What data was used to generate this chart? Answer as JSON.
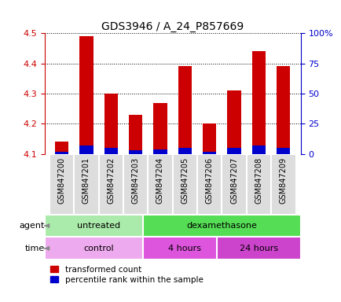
{
  "title": "GDS3946 / A_24_P857669",
  "samples": [
    "GSM847200",
    "GSM847201",
    "GSM847202",
    "GSM847203",
    "GSM847204",
    "GSM847205",
    "GSM847206",
    "GSM847207",
    "GSM847208",
    "GSM847209"
  ],
  "transformed_count": [
    4.14,
    4.49,
    4.3,
    4.23,
    4.27,
    4.39,
    4.2,
    4.31,
    4.44,
    4.39
  ],
  "percentile_rank": [
    2,
    7,
    5,
    3,
    4,
    5,
    2,
    5,
    7,
    5
  ],
  "bar_bottom": 4.1,
  "ylim": [
    4.1,
    4.5
  ],
  "y2lim": [
    0,
    100
  ],
  "y2ticks": [
    0,
    25,
    50,
    75,
    100
  ],
  "y2ticklabels": [
    "0",
    "25",
    "50",
    "75",
    "100%"
  ],
  "yticks": [
    4.1,
    4.2,
    4.3,
    4.4,
    4.5
  ],
  "bar_color_red": "#cc0000",
  "bar_color_blue": "#0000cc",
  "background_color": "#ffffff",
  "title_fontsize": 10,
  "agent_groups": [
    {
      "label": "untreated",
      "start": 0,
      "end": 4,
      "color": "#aaeaaa"
    },
    {
      "label": "dexamethasone",
      "start": 4,
      "end": 10,
      "color": "#55dd55"
    }
  ],
  "time_groups": [
    {
      "label": "control",
      "start": 0,
      "end": 4,
      "color": "#eeaaee"
    },
    {
      "label": "4 hours",
      "start": 4,
      "end": 7,
      "color": "#dd55dd"
    },
    {
      "label": "24 hours",
      "start": 7,
      "end": 10,
      "color": "#cc44cc"
    }
  ],
  "legend_red_label": "transformed count",
  "legend_blue_label": "percentile rank within the sample",
  "bar_width": 0.55
}
